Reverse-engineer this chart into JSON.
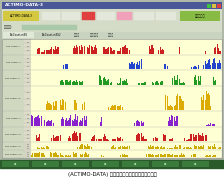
{
  "caption_text": "(ACTIMO-DATA) マウスの運動量測定値の表示画面",
  "outer_bg": "#b0b8a8",
  "window_title_bg": "#4a5898",
  "window_title_text": "ACTIMO-DATA-3",
  "toolbar1_bg": "#d4dcc8",
  "toolbar2_bg": "#d4dcc8",
  "tab_bg": "#c8d4c0",
  "chart_area_bg": "#e8e8c8",
  "row_bg_light": "#f8f8e0",
  "row_bg_stripe": "#f0f0d4",
  "label_bg": "#d0d8c0",
  "taskbar_bg": "#2a5a2a",
  "caption_bg": "#ffffff",
  "yellow_btn": "#d4c840",
  "green_btn": "#88bb44",
  "pink_btn": "#f0a0b8",
  "red_btn": "#e04040",
  "num_rows": 8,
  "row_colors": [
    "#cc2020",
    "#2244cc",
    "#229922",
    "#ddaa00",
    "#8822cc",
    "#cc2020",
    "#ccaa00",
    "#ccaa00"
  ],
  "row_heights_rel": [
    1.0,
    1.0,
    1.0,
    1.6,
    1.0,
    1.0,
    0.5,
    0.5
  ],
  "row_labels": [
    "Plot Sensor I",
    "Plot Sensor II",
    "Plot Sensor III",
    "Plot Sensor IV",
    "Plot Sensor V",
    "Plot Sensor VI",
    "Plot Sensor VII",
    "Plot Sensor VIII"
  ],
  "seeds": [
    10,
    20,
    30,
    40,
    50,
    60,
    70,
    80
  ]
}
